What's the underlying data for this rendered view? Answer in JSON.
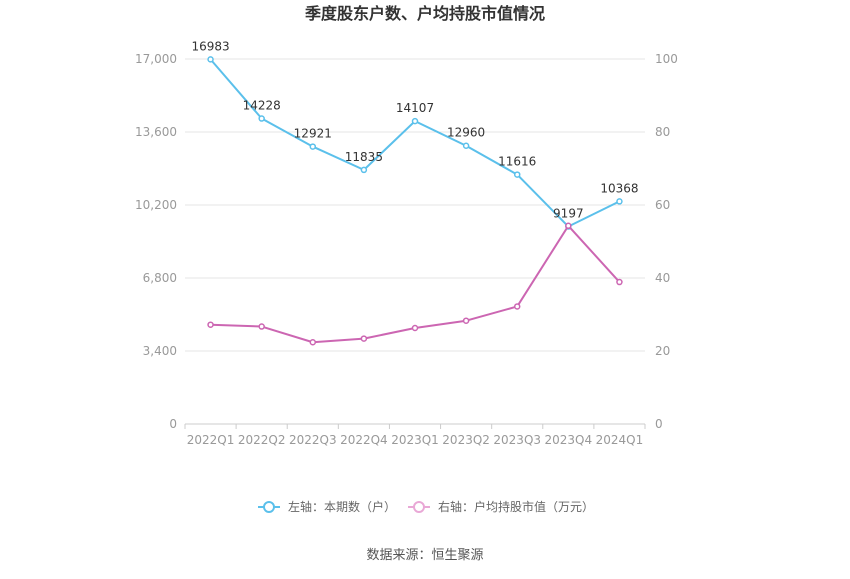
{
  "chart_data": {
    "type": "line",
    "title": "季度股东户数、户均持股市值情况",
    "categories": [
      "2022Q1",
      "2022Q2",
      "2022Q3",
      "2022Q4",
      "2023Q1",
      "2023Q2",
      "2023Q3",
      "2023Q4",
      "2024Q1"
    ],
    "series": [
      {
        "name": "左轴：本期数（户）",
        "axis": "left",
        "color": "#5bc0eb",
        "values": [
          16983,
          14228,
          12921,
          11835,
          14107,
          12960,
          11616,
          9197,
          10368
        ],
        "data_labels": [
          "16983",
          "14228",
          "12921",
          "11835",
          "14107",
          "12960",
          "11616",
          "9197",
          "10368"
        ]
      },
      {
        "name": "右轴：户均持股市值（万元）",
        "axis": "right",
        "color": "#cc66b2",
        "values": [
          27.2,
          26.7,
          22.4,
          23.4,
          26.3,
          28.3,
          32.2,
          54.3,
          38.9
        ]
      }
    ],
    "y_left": {
      "ylim": [
        0,
        17000
      ],
      "ticks": [
        0,
        3400,
        6800,
        10200,
        13600,
        17000
      ],
      "tick_labels": [
        "0",
        "3,400",
        "6,800",
        "10,200",
        "13,600",
        "17,000"
      ]
    },
    "y_right": {
      "ylim": [
        0,
        100
      ],
      "ticks": [
        0,
        20,
        40,
        60,
        80,
        100
      ],
      "tick_labels": [
        "0",
        "20",
        "40",
        "60",
        "80",
        "100"
      ]
    },
    "grid": true,
    "legend_position": "bottom"
  },
  "source": "数据来源：恒生聚源"
}
